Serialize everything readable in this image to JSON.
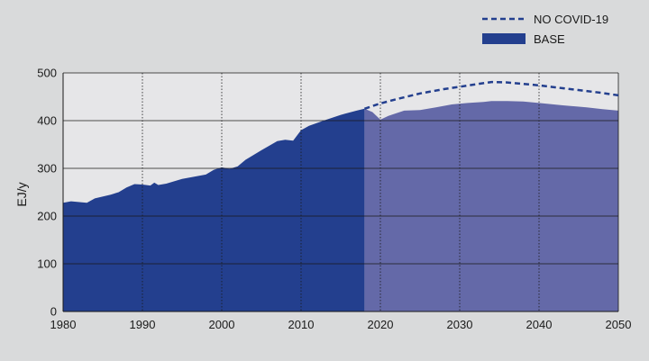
{
  "chart_data": {
    "type": "area",
    "title": "",
    "xlabel": "",
    "ylabel": "EJ/y",
    "xlim": [
      1980,
      2050
    ],
    "ylim": [
      0,
      500
    ],
    "x_ticks": [
      "1980",
      "1990",
      "2000",
      "2010",
      "2020",
      "2030",
      "2040",
      "2050"
    ],
    "y_ticks": [
      "0",
      "100",
      "200",
      "300",
      "400",
      "500"
    ],
    "grid": "horizontal solid lines at every 100; vertical dotted lines at every decade",
    "legend_position": "top-right",
    "colors": {
      "plot_background": "#e6e6e8",
      "historical_fill": "#233f8e",
      "projection_fill": "#6469a8",
      "no_covid_line": "#233f8e"
    },
    "series": [
      {
        "name": "BASE",
        "style": "filled-area",
        "historical_until": 2018,
        "x": [
          1980,
          1981,
          1983,
          1984,
          1986,
          1987,
          1988,
          1989,
          1990,
          1991,
          1991.5,
          1992,
          1993,
          1995,
          1997,
          1998,
          1999,
          2000,
          2001,
          2002,
          2003,
          2005,
          2007,
          2008,
          2009,
          2010,
          2011,
          2013,
          2015,
          2017,
          2018,
          2019,
          2020,
          2021,
          2023,
          2025,
          2027,
          2029,
          2031,
          2033,
          2034,
          2036,
          2038,
          2040,
          2043,
          2046,
          2048,
          2050
        ],
        "values": [
          228,
          231,
          228,
          237,
          245,
          250,
          260,
          267,
          266,
          264,
          270,
          265,
          268,
          278,
          284,
          287,
          297,
          302,
          299,
          304,
          318,
          338,
          357,
          360,
          358,
          380,
          389,
          401,
          412,
          421,
          425,
          418,
          402,
          410,
          421,
          422,
          428,
          434,
          437,
          439,
          441,
          441,
          440,
          437,
          432,
          428,
          424,
          421
        ]
      },
      {
        "name": "NO COVID-19",
        "style": "dashed-line",
        "x": [
          2018,
          2020,
          2022,
          2025,
          2028,
          2030,
          2032,
          2034,
          2036,
          2038,
          2040,
          2043,
          2046,
          2048,
          2050
        ],
        "values": [
          425,
          436,
          445,
          457,
          466,
          471,
          476,
          481,
          480,
          477,
          474,
          468,
          462,
          458,
          453
        ]
      }
    ]
  }
}
